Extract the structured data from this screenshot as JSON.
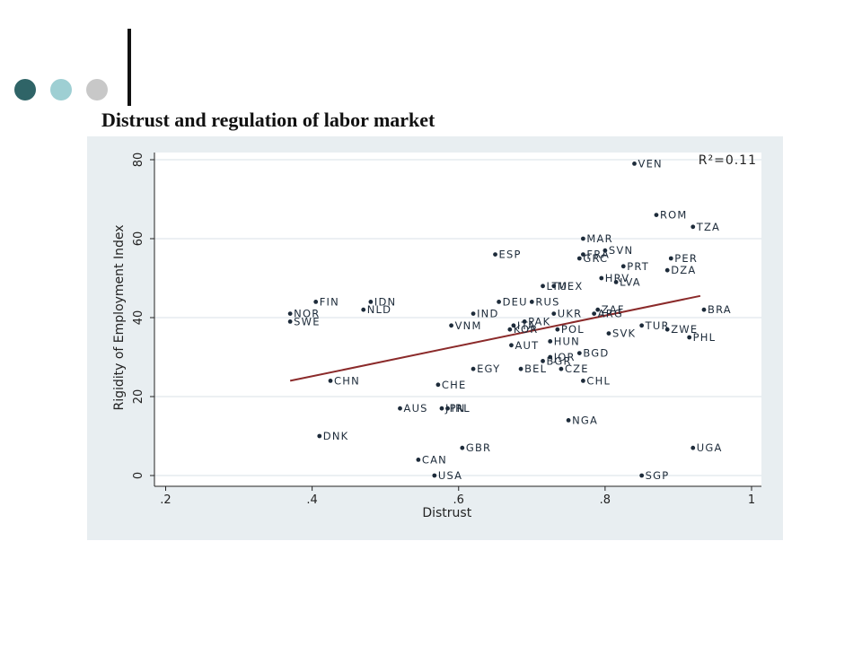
{
  "slide": {
    "title": "Distrust and regulation of labor market",
    "decor_colors": [
      "#2f6467",
      "#9ecfd3",
      "#c8c8c8"
    ]
  },
  "chart_data": {
    "type": "scatter",
    "title": "",
    "xlabel": "Distrust",
    "ylabel": "Rigidity of Employment Index",
    "xlim": [
      0.2,
      1.0
    ],
    "ylim": [
      0,
      80
    ],
    "xticks": [
      0.2,
      0.4,
      0.6,
      0.8,
      1.0
    ],
    "xtick_labels": [
      ".2",
      ".4",
      ".6",
      ".8",
      "1"
    ],
    "yticks": [
      0,
      20,
      40,
      60,
      80
    ],
    "ytick_labels": [
      "0",
      "20",
      "40",
      "60",
      "80"
    ],
    "grid": "horizontal",
    "annotation": "R²=0.11",
    "colors": {
      "points": "#1d2b3a",
      "fit_line": "#8b2a2a",
      "panel": "#e8eef1",
      "plot_bg": "#ffffff"
    },
    "fit_line": {
      "x": [
        0.37,
        0.93
      ],
      "y": [
        24,
        45.5
      ]
    },
    "points": [
      {
        "label": "VEN",
        "x": 0.84,
        "y": 79
      },
      {
        "label": "ROM",
        "x": 0.87,
        "y": 66
      },
      {
        "label": "TZA",
        "x": 0.92,
        "y": 63
      },
      {
        "label": "MAR",
        "x": 0.77,
        "y": 60
      },
      {
        "label": "SVN",
        "x": 0.8,
        "y": 57
      },
      {
        "label": "FRA",
        "x": 0.77,
        "y": 56
      },
      {
        "label": "GRC",
        "x": 0.765,
        "y": 55
      },
      {
        "label": "ESP",
        "x": 0.65,
        "y": 56
      },
      {
        "label": "PER",
        "x": 0.89,
        "y": 55
      },
      {
        "label": "PRT",
        "x": 0.825,
        "y": 53
      },
      {
        "label": "DZA",
        "x": 0.885,
        "y": 52
      },
      {
        "label": "HRV",
        "x": 0.795,
        "y": 50
      },
      {
        "label": "LVA",
        "x": 0.815,
        "y": 49
      },
      {
        "label": "LTU",
        "x": 0.715,
        "y": 48
      },
      {
        "label": "MEX",
        "x": 0.73,
        "y": 48
      },
      {
        "label": "FIN",
        "x": 0.405,
        "y": 44
      },
      {
        "label": "IDN",
        "x": 0.48,
        "y": 44
      },
      {
        "label": "DEU",
        "x": 0.655,
        "y": 44
      },
      {
        "label": "RUS",
        "x": 0.7,
        "y": 44
      },
      {
        "label": "NLD",
        "x": 0.47,
        "y": 42
      },
      {
        "label": "NOR",
        "x": 0.37,
        "y": 41
      },
      {
        "label": "SWE",
        "x": 0.37,
        "y": 39
      },
      {
        "label": "IND",
        "x": 0.62,
        "y": 41
      },
      {
        "label": "UKR",
        "x": 0.73,
        "y": 41
      },
      {
        "label": "ZAF",
        "x": 0.79,
        "y": 42
      },
      {
        "label": "ARG",
        "x": 0.785,
        "y": 41
      },
      {
        "label": "BRA",
        "x": 0.935,
        "y": 42
      },
      {
        "label": "VNM",
        "x": 0.59,
        "y": 38
      },
      {
        "label": "PAK",
        "x": 0.69,
        "y": 39
      },
      {
        "label": "ITA",
        "x": 0.675,
        "y": 38
      },
      {
        "label": "KOR",
        "x": 0.67,
        "y": 37
      },
      {
        "label": "POL",
        "x": 0.735,
        "y": 37
      },
      {
        "label": "TUR",
        "x": 0.85,
        "y": 38
      },
      {
        "label": "ZWE",
        "x": 0.885,
        "y": 37
      },
      {
        "label": "SVK",
        "x": 0.805,
        "y": 36
      },
      {
        "label": "PHL",
        "x": 0.915,
        "y": 35
      },
      {
        "label": "HUN",
        "x": 0.725,
        "y": 34
      },
      {
        "label": "AUT",
        "x": 0.672,
        "y": 33
      },
      {
        "label": "BGD",
        "x": 0.765,
        "y": 31
      },
      {
        "label": "JOR",
        "x": 0.725,
        "y": 30
      },
      {
        "label": "BGR",
        "x": 0.715,
        "y": 29
      },
      {
        "label": "EGY",
        "x": 0.62,
        "y": 27
      },
      {
        "label": "BEL",
        "x": 0.685,
        "y": 27
      },
      {
        "label": "CZE",
        "x": 0.74,
        "y": 27
      },
      {
        "label": "CHN",
        "x": 0.425,
        "y": 24
      },
      {
        "label": "CHL",
        "x": 0.77,
        "y": 24
      },
      {
        "label": "CHE",
        "x": 0.572,
        "y": 23
      },
      {
        "label": "AUS",
        "x": 0.52,
        "y": 17
      },
      {
        "label": "JPN",
        "x": 0.577,
        "y": 17
      },
      {
        "label": "IRL",
        "x": 0.585,
        "y": 17
      },
      {
        "label": "NGA",
        "x": 0.75,
        "y": 14
      },
      {
        "label": "DNK",
        "x": 0.41,
        "y": 10
      },
      {
        "label": "GBR",
        "x": 0.605,
        "y": 7
      },
      {
        "label": "UGA",
        "x": 0.92,
        "y": 7
      },
      {
        "label": "CAN",
        "x": 0.545,
        "y": 4
      },
      {
        "label": "USA",
        "x": 0.567,
        "y": 0
      },
      {
        "label": "SGP",
        "x": 0.85,
        "y": 0
      }
    ]
  }
}
